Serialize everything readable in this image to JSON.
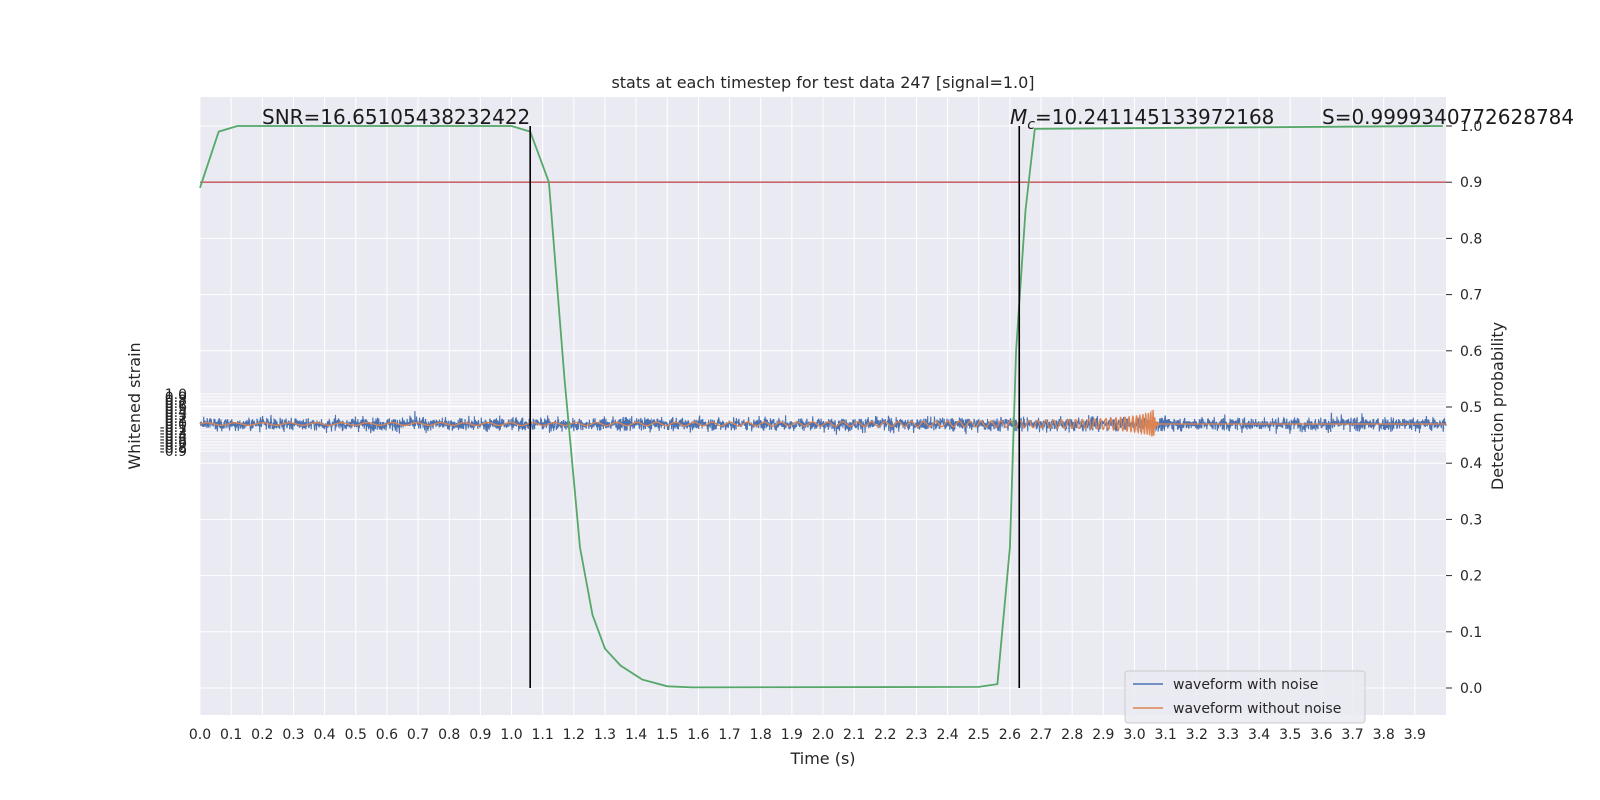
{
  "chart_data": {
    "type": "line",
    "title": "stats at each timestep for test data 247 [signal=1.0]",
    "xlabel": "Time (s)",
    "ylabel": "Whitened strain",
    "y2label": "Detection probability",
    "xlim": [
      0.0,
      4.0
    ],
    "ylim": [
      -1.0,
      1.1
    ],
    "y2lim": [
      -0.05,
      1.0
    ],
    "x_ticks": [
      "0.0",
      "0.1",
      "0.2",
      "0.3",
      "0.4",
      "0.5",
      "0.6",
      "0.7",
      "0.8",
      "0.9",
      "1.0",
      "1.1",
      "1.2",
      "1.3",
      "1.4",
      "1.5",
      "1.6",
      "1.7",
      "1.8",
      "1.9",
      "2.0",
      "2.1",
      "2.2",
      "2.3",
      "2.4",
      "2.5",
      "2.6",
      "2.7",
      "2.8",
      "2.9",
      "3.0",
      "3.1",
      "3.2",
      "3.3",
      "3.4",
      "3.5",
      "3.6",
      "3.7",
      "3.8",
      "3.9"
    ],
    "y_ticks": [
      "1.0",
      "0.9",
      "0.8",
      "0.7",
      "0.6",
      "0.5",
      "0.4",
      "0.3",
      "0.2",
      "0.1",
      "0.0",
      "-0.1",
      "-0.2",
      "-0.3",
      "-0.4",
      "-0.5",
      "-0.6",
      "-0.7",
      "-0.8",
      "-0.9"
    ],
    "y2_ticks": [
      "1.0",
      "0.9",
      "0.8",
      "0.7",
      "0.6",
      "0.5",
      "0.4",
      "0.3",
      "0.2",
      "0.1",
      "0.0"
    ],
    "grid": true,
    "legend_position": "lower-right",
    "colors": {
      "noise": "#4c72b0",
      "clean": "#dd8452",
      "probability": "#55a868",
      "threshold": "#c44e52",
      "marker": "#000000",
      "background": "#eaeaf2"
    },
    "series": [
      {
        "name": "waveform with noise",
        "description": "dense noisy strain, amplitude ~±0.5, occasional spikes to ±0.8"
      },
      {
        "name": "waveform without noise",
        "chirp": {
          "start_amplitude": 0.04,
          "peak_amplitude": 0.6,
          "peak_time": 3.06,
          "ringdown_end": 3.08
        }
      }
    ],
    "probability_series": {
      "x": [
        0.0,
        0.06,
        0.12,
        1.0,
        1.06,
        1.12,
        1.17,
        1.22,
        1.26,
        1.3,
        1.35,
        1.42,
        1.5,
        1.58,
        2.5,
        2.56,
        2.6,
        2.62,
        2.65,
        2.68,
        3.99
      ],
      "y": [
        0.89,
        0.99,
        1.0,
        1.0,
        0.99,
        0.9,
        0.55,
        0.25,
        0.13,
        0.07,
        0.04,
        0.015,
        0.003,
        0.001,
        0.002,
        0.007,
        0.25,
        0.6,
        0.85,
        0.995,
        1.0
      ]
    },
    "threshold": 0.9,
    "vertical_markers": [
      1.06,
      2.63
    ],
    "annotations": {
      "snr": "SNR=16.65105438232422",
      "mc": "=10.241145133972168",
      "mc_symbol": "M",
      "mc_sub": "c",
      "s": "S=0.9999340772628784"
    }
  }
}
